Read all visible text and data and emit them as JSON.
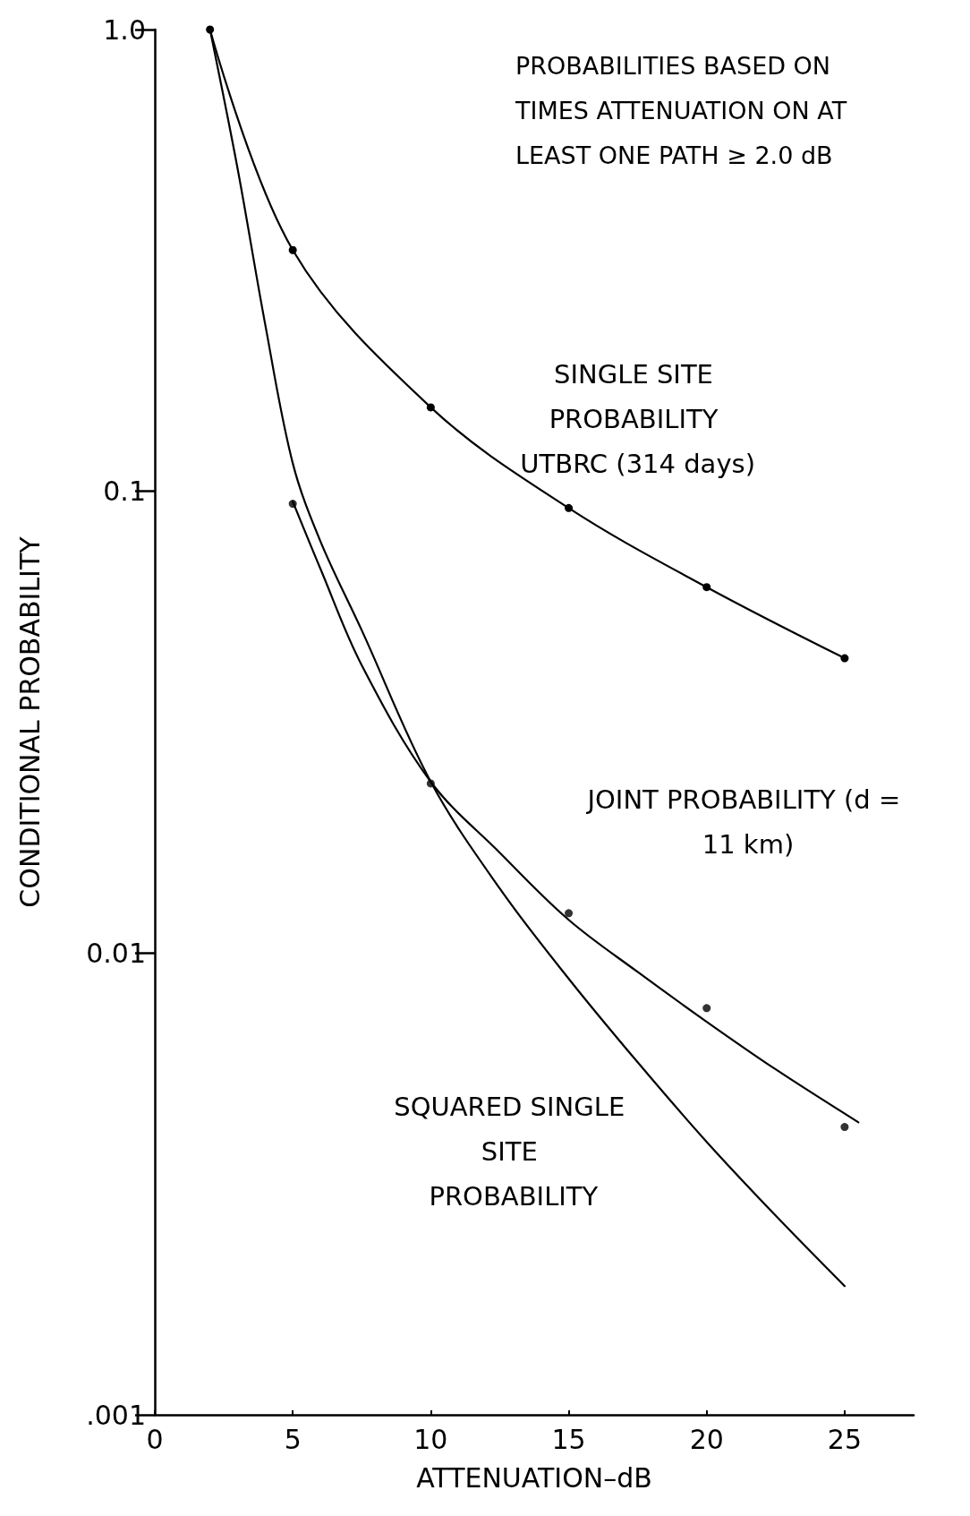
{
  "chart_data": {
    "type": "line",
    "xlabel": "ATTENUATION–dB",
    "ylabel": "CONDITIONAL PROBABILITY",
    "log": "y",
    "grid": false,
    "legend": false,
    "marker": "circle",
    "line_style": "solid",
    "xlim": [
      0,
      27.5
    ],
    "xticks": [
      0,
      5,
      10,
      15,
      20,
      25
    ],
    "ylim": [
      0.001,
      1
    ],
    "yticks": [
      {
        "value": 1,
        "label": "1.0"
      },
      {
        "value": 0.1,
        "label": "0.1"
      },
      {
        "value": 0.01,
        "label": "0.01"
      },
      {
        "value": 0.001,
        "label": ".001"
      }
    ],
    "annotations": [
      "PROBABILITIES BASED ON TIMES ATTENUATION ON AT LEAST ONE PATH ≥ 2.0 dB"
    ],
    "series": [
      {
        "name": "SINGLE SITE PROBABILITY UTBRC (314 days)",
        "color": "#000000",
        "x": [
          2,
          5,
          10,
          15,
          20,
          25
        ],
        "values": [
          1.0,
          0.333,
          0.152,
          0.092,
          0.062,
          0.0435
        ]
      },
      {
        "name": "JOINT PROBABILITY (d = 11 km)",
        "type": "scatter",
        "color": "#000000",
        "x": [
          5,
          10,
          15,
          20,
          25
        ],
        "values": [
          0.094,
          0.0233,
          0.0122,
          0.0076,
          0.0042
        ]
      },
      {
        "type": "line",
        "marker": "none",
        "color": "#000000",
        "x": [
          5,
          6,
          7.5,
          10,
          12.5,
          15,
          17.5,
          20,
          22.5,
          25.5
        ],
        "values": [
          0.095,
          0.068,
          0.042,
          0.0235,
          0.0165,
          0.0118,
          0.0091,
          0.0071,
          0.0056,
          0.0043
        ]
      },
      {
        "name": "SQUARED SINGLE SITE PROBABILITY",
        "marker": "none",
        "color": "#000000",
        "x": [
          2,
          3,
          4,
          5,
          6,
          7.5,
          10,
          12.5,
          15,
          17.5,
          20,
          22.5,
          25
        ],
        "values": [
          1.0,
          0.5,
          0.23,
          0.115,
          0.078,
          0.05,
          0.0235,
          0.0138,
          0.0088,
          0.0058,
          0.0039,
          0.0027,
          0.0019
        ]
      }
    ]
  }
}
